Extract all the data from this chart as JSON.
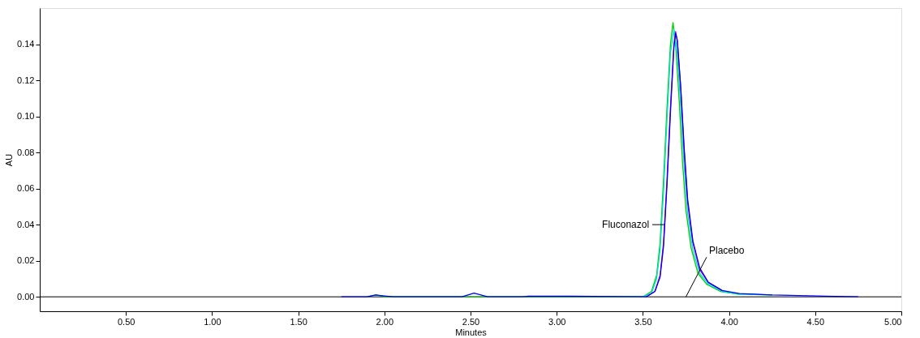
{
  "chart_data": {
    "type": "line",
    "xlabel": "Minutes",
    "ylabel": "AU",
    "xlim": [
      0,
      5
    ],
    "xticks": [
      {
        "value": 0.5,
        "label": "0.50"
      },
      {
        "value": 1,
        "label": "1.00"
      },
      {
        "value": 1.5,
        "label": "1.50"
      },
      {
        "value": 2,
        "label": "2.00"
      },
      {
        "value": 2.5,
        "label": "2.50"
      },
      {
        "value": 3,
        "label": "3.00"
      },
      {
        "value": 3.5,
        "label": "3.50"
      },
      {
        "value": 4,
        "label": "4.00"
      },
      {
        "value": 4.5,
        "label": "4.50"
      },
      {
        "value": 5,
        "label": "5.00"
      }
    ],
    "ylim": [
      -0.008,
      0.16
    ],
    "yticks": [
      {
        "value": 0,
        "label": "0.00"
      },
      0.02,
      0.04,
      0.06,
      0.08,
      {
        "value": 0.1,
        "label": "0.10"
      },
      0.12,
      0.14
    ],
    "grid": false,
    "marker": "none",
    "line_style": "solid",
    "series": [
      {
        "color": "#00cc00",
        "x": [
          1.9,
          1.95,
          2.0,
          3.5,
          3.55,
          3.58,
          3.6,
          3.62,
          3.64,
          3.66,
          3.675,
          3.69,
          3.71,
          3.73,
          3.75,
          3.78,
          3.82,
          3.87,
          3.95,
          4.05,
          4.25
        ],
        "values": [
          0,
          0.001,
          0,
          0,
          0.003,
          0.012,
          0.03,
          0.065,
          0.105,
          0.14,
          0.152,
          0.14,
          0.11,
          0.075,
          0.048,
          0.027,
          0.013,
          0.007,
          0.003,
          0.0015,
          0.001
        ]
      },
      {
        "color": "#00e0e0",
        "x": [
          3.5,
          3.55,
          3.58,
          3.6,
          3.62,
          3.64,
          3.66,
          3.68,
          3.7,
          3.72,
          3.74,
          3.76,
          3.79,
          3.83,
          3.88,
          3.96,
          4.06,
          4.25
        ],
        "values": [
          0,
          0.002,
          0.01,
          0.026,
          0.058,
          0.098,
          0.135,
          0.148,
          0.135,
          0.105,
          0.072,
          0.046,
          0.026,
          0.013,
          0.007,
          0.003,
          0.0015,
          0.001
        ]
      },
      {
        "color": "#cc00cc",
        "x": [
          3.52,
          3.57,
          3.6,
          3.62,
          3.64,
          3.66,
          3.68,
          3.69,
          3.7,
          3.72,
          3.74,
          3.76,
          3.79,
          3.83,
          3.88,
          3.96
        ],
        "values": [
          0,
          0.003,
          0.012,
          0.03,
          0.065,
          0.105,
          0.14,
          0.147,
          0.142,
          0.115,
          0.08,
          0.052,
          0.03,
          0.015,
          0.008,
          0.0035
        ]
      },
      {
        "color": "#0000ee",
        "x": [
          1.75,
          1.9,
          1.95,
          2.0,
          2.05,
          2.45,
          2.52,
          2.6,
          2.8,
          2.83,
          2.93,
          3.07,
          3.52,
          3.57,
          3.6,
          3.62,
          3.64,
          3.66,
          3.68,
          3.69,
          3.7,
          3.72,
          3.74,
          3.76,
          3.79,
          3.83,
          3.88,
          3.96,
          4.06,
          4.25,
          4.75
        ],
        "values": [
          0,
          0,
          0.001,
          0.0005,
          0,
          0,
          0.002,
          0,
          0,
          0.0003,
          0.0003,
          0.0003,
          0,
          0.003,
          0.011,
          0.028,
          0.062,
          0.102,
          0.138,
          0.146,
          0.142,
          0.116,
          0.082,
          0.054,
          0.031,
          0.016,
          0.008,
          0.0035,
          0.0018,
          0.001,
          0
        ]
      }
    ],
    "ref_lines": [
      {
        "axis": "y",
        "value": 0,
        "color": "#000000"
      }
    ],
    "annotations": [
      {
        "text": "Fluconazol",
        "x": 3.625,
        "y": 0.04
      },
      {
        "text": "Placebo",
        "x": 3.75,
        "y": 0
      }
    ]
  }
}
